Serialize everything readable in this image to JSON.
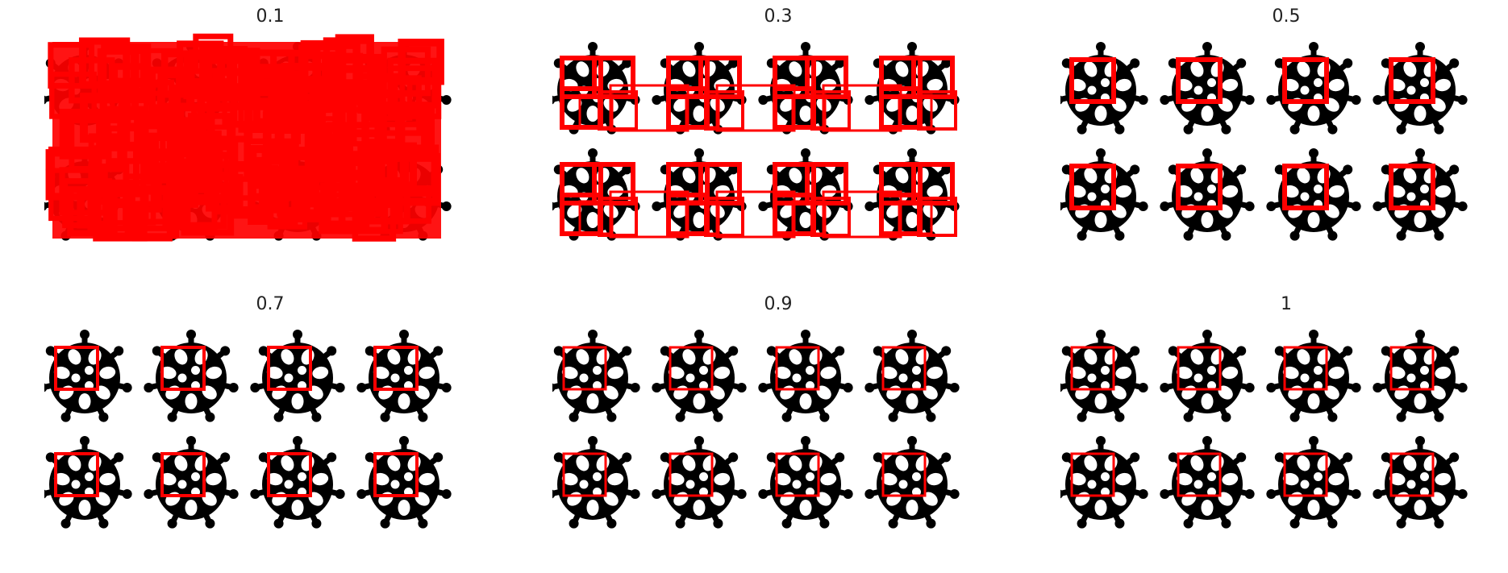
{
  "figure": {
    "panels": [
      {
        "title": "0.1"
      },
      {
        "title": "0.3"
      },
      {
        "title": "0.5"
      },
      {
        "title": "0.7"
      },
      {
        "title": "0.9"
      },
      {
        "title": "1"
      }
    ],
    "colors": {
      "lattice": "#000000",
      "hole": "#ffffff",
      "box": "#ff0000",
      "background": "#ffffff"
    },
    "grid": {
      "rows": 2,
      "cols": 4
    }
  }
}
